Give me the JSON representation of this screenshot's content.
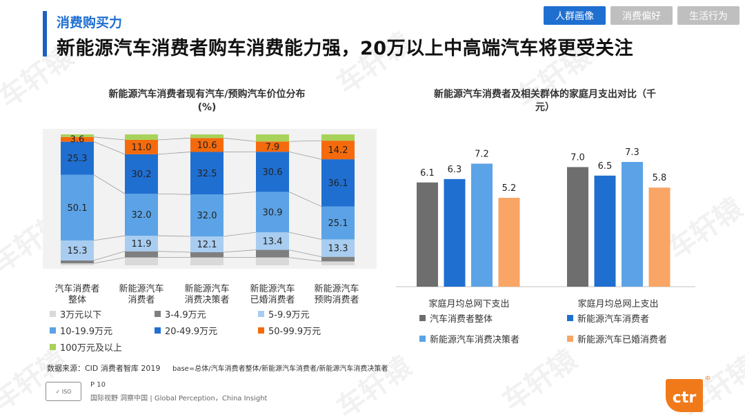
{
  "header": {
    "section": "消费购买力",
    "title": "新能源汽车消费者购车消费能力强，20万以上中高端汽车将更受关注"
  },
  "tabs": [
    {
      "label": "人群画像",
      "active": true
    },
    {
      "label": "消费偏好",
      "active": false
    },
    {
      "label": "生活行为",
      "active": false
    }
  ],
  "watermark": "车轩辕",
  "chart_data": [
    {
      "type": "bar",
      "stacked": true,
      "percent": true,
      "title": "新能源汽车消费者现有汽车/预购汽车价位分布",
      "unit": "(%)",
      "categories": [
        {
          "line1": "汽车消费者",
          "line2": "整体"
        },
        {
          "line1": "新能源汽车",
          "line2": "消费者"
        },
        {
          "line1": "新能源汽车",
          "line2": "消费决策者"
        },
        {
          "line1": "新能源汽车",
          "line2": "已婚消费者"
        },
        {
          "line1": "新能源汽车",
          "line2": "预购消费者"
        }
      ],
      "series": [
        {
          "name": "3万元以下",
          "color": "#d9d9d9",
          "values": [
            1.5,
            6.0,
            6.0,
            6.0,
            3.0
          ],
          "labels": [
            null,
            null,
            null,
            null,
            null
          ]
        },
        {
          "name": "3-4.9万元",
          "color": "#7f7f7f",
          "values": [
            2.2,
            4.7,
            4.0,
            5.8,
            3.5
          ],
          "labels": [
            null,
            null,
            null,
            null,
            null
          ]
        },
        {
          "name": "5-9.9万元",
          "color": "#a8cdf0",
          "values": [
            15.3,
            11.9,
            12.1,
            13.4,
            13.3
          ],
          "labels": [
            "15.3",
            "11.9",
            "12.1",
            "13.4",
            "13.3"
          ]
        },
        {
          "name": "10-19.9万元",
          "color": "#5ba3e6",
          "values": [
            50.1,
            32.0,
            32.0,
            30.9,
            25.1
          ],
          "labels": [
            "50.1",
            "32.0",
            "32.0",
            "30.9",
            "25.1"
          ]
        },
        {
          "name": "20-49.9万元",
          "color": "#1f6fd1",
          "values": [
            25.3,
            30.2,
            32.5,
            30.6,
            36.1
          ],
          "labels": [
            "25.3",
            "30.2",
            "32.5",
            "30.6",
            "36.1"
          ]
        },
        {
          "name": "50-99.9万元",
          "color": "#f46a0c",
          "values": [
            3.6,
            11.0,
            10.6,
            7.9,
            14.2
          ],
          "labels": [
            "3.6",
            "11.0",
            "10.6",
            "7.9",
            "14.2"
          ]
        },
        {
          "name": "100万元及以上",
          "color": "#a8d25a",
          "values": [
            2.0,
            4.2,
            2.8,
            5.4,
            4.8
          ],
          "labels": [
            null,
            null,
            null,
            null,
            null
          ]
        }
      ]
    },
    {
      "type": "bar",
      "title": "新能源汽车消费者及相关群体的家庭月支出对比（千元）",
      "title_line1": "新能源汽车消费者及相关群体的家庭月支出对比（千",
      "title_line2": "元）",
      "categories": [
        "家庭月均总网下支出",
        "家庭月均总网上支出"
      ],
      "ylim": [
        0,
        8
      ],
      "series": [
        {
          "name": "汽车消费者整体",
          "color": "#6e6e6e",
          "values": [
            6.1,
            7.0
          ]
        },
        {
          "name": "新能源汽车消费者",
          "color": "#1f6fd1",
          "values": [
            6.3,
            6.5
          ]
        },
        {
          "name": "新能源汽车消费决策者",
          "color": "#5ba3e6",
          "values": [
            7.2,
            7.3
          ]
        },
        {
          "name": "新能源汽车已婚消费者",
          "color": "#f8a566",
          "values": [
            5.2,
            5.8
          ]
        }
      ]
    }
  ],
  "footer": {
    "source": "数据来源：CID 消费者智库 2019",
    "base": "base=总体/汽车消费者整体/新能源汽车消费者/新能源汽车消费决策者",
    "page": "P 10",
    "tagline": "国际视野  洞察中国 |  Global Perception，China Insight",
    "logo": "ctr",
    "logo_mark": "中"
  }
}
